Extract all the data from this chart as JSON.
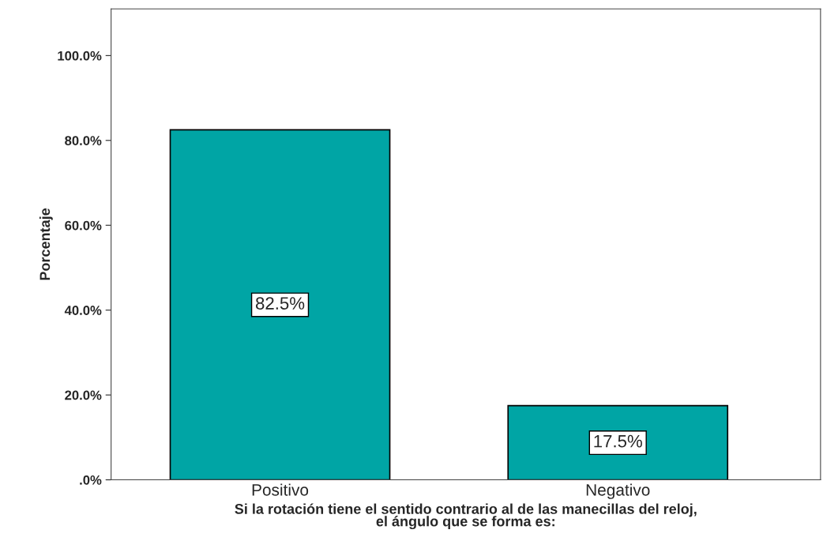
{
  "chart_data": {
    "type": "bar",
    "xlabel": "Si la rotación tiene el sentido contrario al de las manecillas del reloj,\nel ángulo que se forma es:",
    "ylabel": "Porcentaje",
    "categories": [
      "Positivo",
      "Negativo"
    ],
    "values": [
      82.5,
      17.5
    ],
    "value_labels": [
      "82.5%",
      "17.5%"
    ],
    "color": "#00a5a5",
    "ylim": [
      0,
      111
    ],
    "yticks": [
      {
        "value": 0,
        "label": ".0%"
      },
      {
        "value": 20,
        "label": "20.0%"
      },
      {
        "value": 40,
        "label": "40.0%"
      },
      {
        "value": 60,
        "label": "60.0%"
      },
      {
        "value": 80,
        "label": "80.0%"
      },
      {
        "value": 100,
        "label": "100.0%"
      }
    ],
    "grid": false,
    "legend": false
  }
}
